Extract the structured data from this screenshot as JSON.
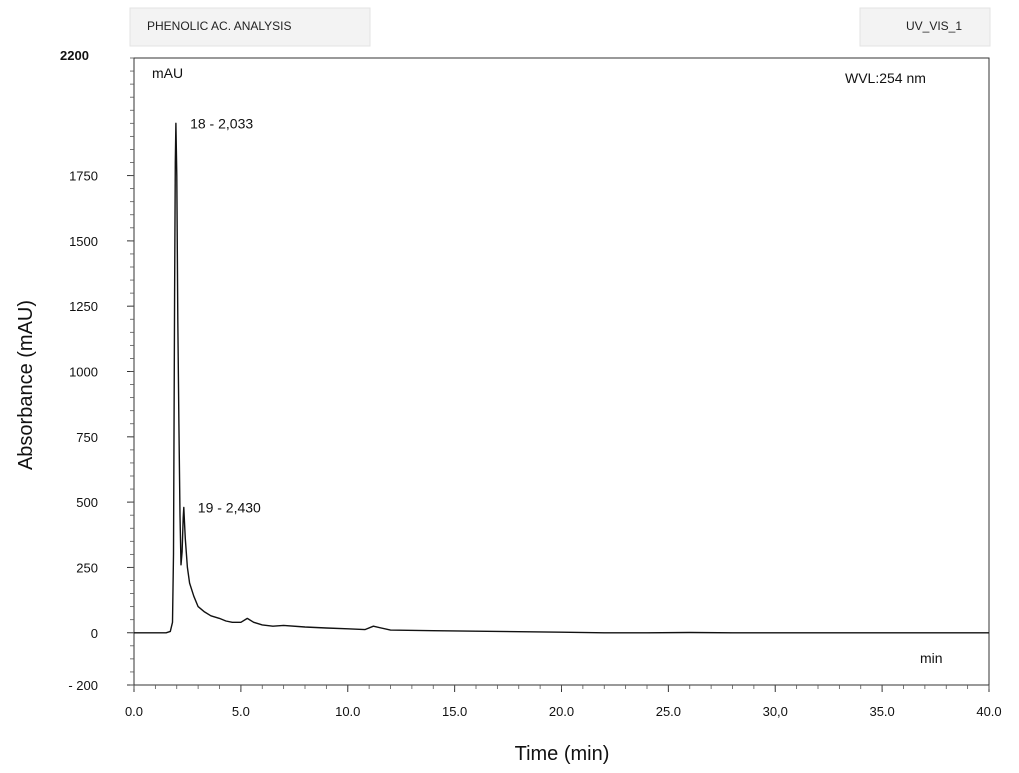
{
  "header": {
    "left_title": "PHENOLIC AC. ANALYSIS",
    "right_title": "UV_VIS_1"
  },
  "plot": {
    "unit_label": "mAU",
    "wavelength_label": "WVL:254 nm",
    "x_unit_label": "min"
  },
  "chart_data": {
    "type": "line",
    "xlabel": "Time (min)",
    "ylabel": "Absorbance (mAU)",
    "xlim": [
      0,
      40
    ],
    "ylim": [
      -200,
      2200
    ],
    "ytop_label": "2200",
    "x_ticks": [
      {
        "v": 0,
        "label": "0.0"
      },
      {
        "v": 5,
        "label": "5.0"
      },
      {
        "v": 10,
        "label": "10.0"
      },
      {
        "v": 15,
        "label": "15.0"
      },
      {
        "v": 20,
        "label": "20.0"
      },
      {
        "v": 25,
        "label": "25.0"
      },
      {
        "v": 30,
        "label": "30,0"
      },
      {
        "v": 35,
        "label": "35.0"
      },
      {
        "v": 40,
        "label": "40.0"
      }
    ],
    "y_ticks": [
      {
        "v": -200,
        "label": "- 200"
      },
      {
        "v": 0,
        "label": "0"
      },
      {
        "v": 250,
        "label": "250"
      },
      {
        "v": 500,
        "label": "500"
      },
      {
        "v": 750,
        "label": "750"
      },
      {
        "v": 1000,
        "label": "1000"
      },
      {
        "v": 1250,
        "label": "1250"
      },
      {
        "v": 1500,
        "label": "1500"
      },
      {
        "v": 1750,
        "label": "1750"
      }
    ],
    "annotations": [
      {
        "text": "18 - 2,033",
        "x": 1.97,
        "y": 1950
      },
      {
        "text": "19 - 2,430",
        "x": 2.33,
        "y": 480
      }
    ],
    "series": [
      {
        "x": [
          0,
          1.5,
          1.7,
          1.8,
          1.85,
          1.9,
          1.93,
          1.96,
          2.0,
          2.05,
          2.1,
          2.15,
          2.2,
          2.25,
          2.3,
          2.33,
          2.36,
          2.4,
          2.5,
          2.6,
          2.8,
          3.0,
          3.3,
          3.6,
          4.0,
          4.3,
          4.6,
          5.0,
          5.3,
          5.6,
          6.0,
          6.5,
          7.0,
          8.0,
          9.0,
          10.0,
          10.8,
          11.2,
          12.0,
          14.0,
          16.0,
          18.0,
          20.0,
          22.0,
          24.0,
          26.0,
          28.0,
          30.0,
          32.0,
          34.0,
          36.0,
          38.0,
          40.0
        ],
        "y": [
          0,
          0,
          5,
          40,
          300,
          1300,
          1800,
          1950,
          1750,
          1200,
          800,
          450,
          260,
          310,
          440,
          480,
          430,
          360,
          250,
          190,
          140,
          100,
          80,
          65,
          55,
          45,
          40,
          40,
          55,
          40,
          30,
          25,
          28,
          22,
          18,
          15,
          12,
          25,
          10,
          8,
          6,
          4,
          2,
          0,
          0,
          1,
          0,
          0,
          0,
          0,
          0,
          0,
          0
        ]
      }
    ]
  }
}
